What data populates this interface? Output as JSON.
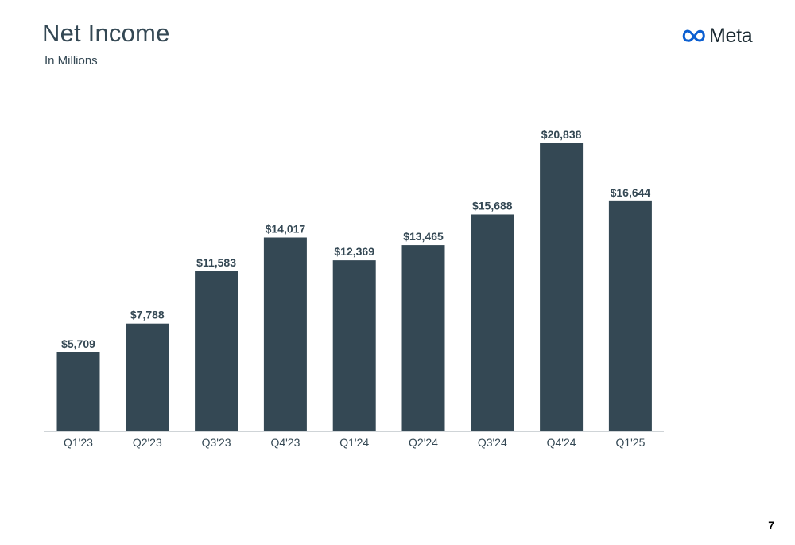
{
  "header": {
    "title": "Net Income",
    "subtitle": "In Millions",
    "logo_text": "Meta",
    "logo_icon": "meta-infinity-logo-icon"
  },
  "footer": {
    "page_number": "7"
  },
  "colors": {
    "bar": "#344854",
    "text": "#344854",
    "axis": "#cfd4d7",
    "logo_mark": "#0b5fd1"
  },
  "chart_data": {
    "type": "bar",
    "categories": [
      "Q1'23",
      "Q2'23",
      "Q3'23",
      "Q4'23",
      "Q1'24",
      "Q2'24",
      "Q3'24",
      "Q4'24",
      "Q1'25"
    ],
    "values": [
      5709,
      7788,
      11583,
      14017,
      12369,
      13465,
      15688,
      20838,
      16644
    ],
    "data_labels": [
      "$5,709",
      "$7,788",
      "$11,583",
      "$14,017",
      "$12,369",
      "$13,465",
      "$15,688",
      "$20,838",
      "$16,644"
    ],
    "title": "Net Income",
    "subtitle": "In Millions",
    "ylim": [
      0,
      20838
    ],
    "grid": false,
    "legend": "none"
  }
}
